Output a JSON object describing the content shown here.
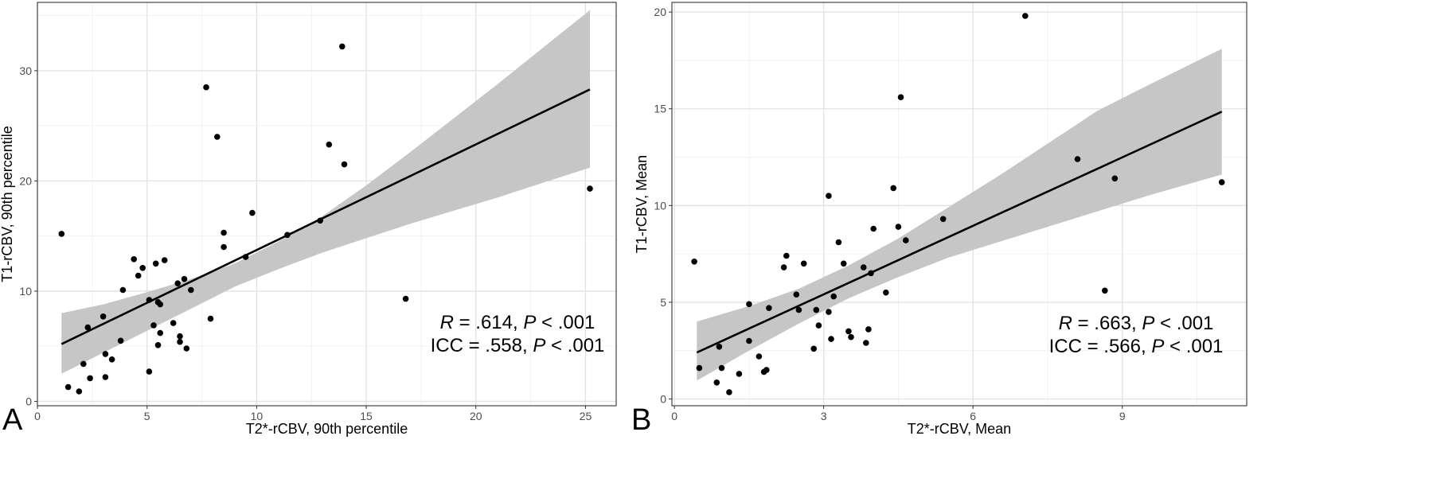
{
  "chart_data": [
    {
      "type": "scatter",
      "panel_label": "A",
      "xlabel": "T2*-rCBV, 90th percentile",
      "ylabel": "T1-rCBV, 90th percentile",
      "xlim": [
        0,
        26.4
      ],
      "ylim": [
        -0.4,
        36.2
      ],
      "xticks": [
        0,
        5,
        10,
        15,
        20,
        25
      ],
      "yticks": [
        0,
        10,
        20,
        30
      ],
      "grid": true,
      "annotation": {
        "line1_var": "R",
        "line1_rest": " = .614, ",
        "line1_p": "P",
        "line1_end": " < .001",
        "line2": "ICC = .558, ",
        "line2_p": "P",
        "line2_end": " < .001"
      },
      "fit": {
        "x": [
          1.1,
          25.2
        ],
        "y": [
          5.2,
          28.3
        ]
      },
      "band": {
        "x": [
          1.1,
          3,
          5,
          7,
          9,
          11,
          13,
          15,
          17,
          19,
          21,
          23,
          25.2
        ],
        "lower": [
          2.5,
          4.4,
          6.4,
          8.4,
          10.4,
          12.0,
          13.5,
          14.8,
          16.1,
          17.3,
          18.5,
          19.8,
          21.2
        ],
        "upper": [
          8.0,
          8.8,
          9.9,
          11.1,
          12.5,
          14.5,
          16.8,
          19.6,
          22.6,
          25.7,
          28.8,
          32.0,
          35.5
        ]
      },
      "points": [
        {
          "x": 1.1,
          "y": 15.2
        },
        {
          "x": 1.4,
          "y": 1.3
        },
        {
          "x": 1.9,
          "y": 0.9
        },
        {
          "x": 2.1,
          "y": 3.4
        },
        {
          "x": 2.3,
          "y": 6.7
        },
        {
          "x": 2.4,
          "y": 2.1
        },
        {
          "x": 3.0,
          "y": 7.7
        },
        {
          "x": 3.1,
          "y": 4.3
        },
        {
          "x": 3.1,
          "y": 2.2
        },
        {
          "x": 3.4,
          "y": 3.8
        },
        {
          "x": 3.8,
          "y": 5.5
        },
        {
          "x": 3.9,
          "y": 10.1
        },
        {
          "x": 4.4,
          "y": 12.9
        },
        {
          "x": 4.6,
          "y": 11.4
        },
        {
          "x": 4.8,
          "y": 12.1
        },
        {
          "x": 5.1,
          "y": 9.2
        },
        {
          "x": 5.1,
          "y": 2.7
        },
        {
          "x": 5.3,
          "y": 6.9
        },
        {
          "x": 5.4,
          "y": 12.5
        },
        {
          "x": 5.5,
          "y": 9.0
        },
        {
          "x": 5.5,
          "y": 5.1
        },
        {
          "x": 5.6,
          "y": 6.2
        },
        {
          "x": 5.6,
          "y": 8.8
        },
        {
          "x": 5.8,
          "y": 12.8
        },
        {
          "x": 6.2,
          "y": 7.1
        },
        {
          "x": 6.4,
          "y": 10.7
        },
        {
          "x": 6.5,
          "y": 5.9
        },
        {
          "x": 6.5,
          "y": 5.4
        },
        {
          "x": 6.7,
          "y": 11.1
        },
        {
          "x": 6.8,
          "y": 4.8
        },
        {
          "x": 7.0,
          "y": 10.1
        },
        {
          "x": 7.7,
          "y": 28.5
        },
        {
          "x": 7.9,
          "y": 7.5
        },
        {
          "x": 8.2,
          "y": 24.0
        },
        {
          "x": 8.5,
          "y": 14.0
        },
        {
          "x": 8.5,
          "y": 15.3
        },
        {
          "x": 9.5,
          "y": 13.1
        },
        {
          "x": 9.8,
          "y": 17.1
        },
        {
          "x": 11.4,
          "y": 15.1
        },
        {
          "x": 12.9,
          "y": 16.4
        },
        {
          "x": 13.3,
          "y": 23.3
        },
        {
          "x": 13.9,
          "y": 32.2
        },
        {
          "x": 14.0,
          "y": 21.5
        },
        {
          "x": 16.8,
          "y": 9.3
        },
        {
          "x": 25.2,
          "y": 19.3
        }
      ]
    },
    {
      "type": "scatter",
      "panel_label": "B",
      "xlabel": "T2*-rCBV, Mean",
      "ylabel": "T1-rCBV, Mean",
      "xlim": [
        -0.05,
        11.5
      ],
      "ylim": [
        -0.35,
        20.5
      ],
      "xticks": [
        0,
        3,
        6,
        9
      ],
      "yticks": [
        0,
        5,
        10,
        15,
        20
      ],
      "grid": true,
      "annotation": {
        "line1_var": "R",
        "line1_rest": " = .663, ",
        "line1_p": "P",
        "line1_end": " < .001",
        "line2": "ICC = .566, ",
        "line2_p": "P",
        "line2_end": " < .001"
      },
      "fit": {
        "x": [
          0.45,
          11.0
        ],
        "y": [
          2.4,
          14.85
        ]
      },
      "band": {
        "x": [
          0.45,
          1.5,
          2.5,
          3.5,
          4.5,
          5.5,
          6.5,
          7.5,
          8.5,
          9.5,
          11.0
        ],
        "lower": [
          0.95,
          2.5,
          3.9,
          5.2,
          6.3,
          7.3,
          8.1,
          8.9,
          9.7,
          10.5,
          11.6
        ],
        "upper": [
          4.0,
          4.8,
          5.7,
          6.9,
          8.3,
          9.9,
          11.5,
          13.2,
          14.9,
          16.2,
          18.1
        ]
      },
      "points": [
        {
          "x": 0.4,
          "y": 7.1
        },
        {
          "x": 0.5,
          "y": 1.6
        },
        {
          "x": 0.85,
          "y": 0.85
        },
        {
          "x": 0.9,
          "y": 2.7
        },
        {
          "x": 0.95,
          "y": 1.6
        },
        {
          "x": 1.1,
          "y": 0.35
        },
        {
          "x": 1.3,
          "y": 1.3
        },
        {
          "x": 1.5,
          "y": 4.9
        },
        {
          "x": 1.5,
          "y": 3.0
        },
        {
          "x": 1.7,
          "y": 2.2
        },
        {
          "x": 1.8,
          "y": 1.4
        },
        {
          "x": 1.85,
          "y": 1.5
        },
        {
          "x": 1.9,
          "y": 4.7
        },
        {
          "x": 2.2,
          "y": 6.8
        },
        {
          "x": 2.25,
          "y": 7.4
        },
        {
          "x": 2.45,
          "y": 5.4
        },
        {
          "x": 2.5,
          "y": 4.6
        },
        {
          "x": 2.6,
          "y": 7.0
        },
        {
          "x": 2.8,
          "y": 2.6
        },
        {
          "x": 2.85,
          "y": 4.6
        },
        {
          "x": 2.9,
          "y": 3.8
        },
        {
          "x": 3.1,
          "y": 10.5
        },
        {
          "x": 3.1,
          "y": 4.5
        },
        {
          "x": 3.15,
          "y": 3.1
        },
        {
          "x": 3.2,
          "y": 5.3
        },
        {
          "x": 3.3,
          "y": 8.1
        },
        {
          "x": 3.4,
          "y": 7.0
        },
        {
          "x": 3.5,
          "y": 3.5
        },
        {
          "x": 3.55,
          "y": 3.2
        },
        {
          "x": 3.8,
          "y": 6.8
        },
        {
          "x": 3.85,
          "y": 2.9
        },
        {
          "x": 3.9,
          "y": 3.6
        },
        {
          "x": 3.95,
          "y": 6.5
        },
        {
          "x": 4.0,
          "y": 8.8
        },
        {
          "x": 4.25,
          "y": 5.5
        },
        {
          "x": 4.4,
          "y": 10.9
        },
        {
          "x": 4.5,
          "y": 8.9
        },
        {
          "x": 4.55,
          "y": 15.6
        },
        {
          "x": 4.65,
          "y": 8.2
        },
        {
          "x": 5.4,
          "y": 9.3
        },
        {
          "x": 7.05,
          "y": 19.8
        },
        {
          "x": 8.1,
          "y": 12.4
        },
        {
          "x": 8.65,
          "y": 5.6
        },
        {
          "x": 8.85,
          "y": 11.4
        },
        {
          "x": 11.0,
          "y": 11.2
        }
      ]
    }
  ]
}
